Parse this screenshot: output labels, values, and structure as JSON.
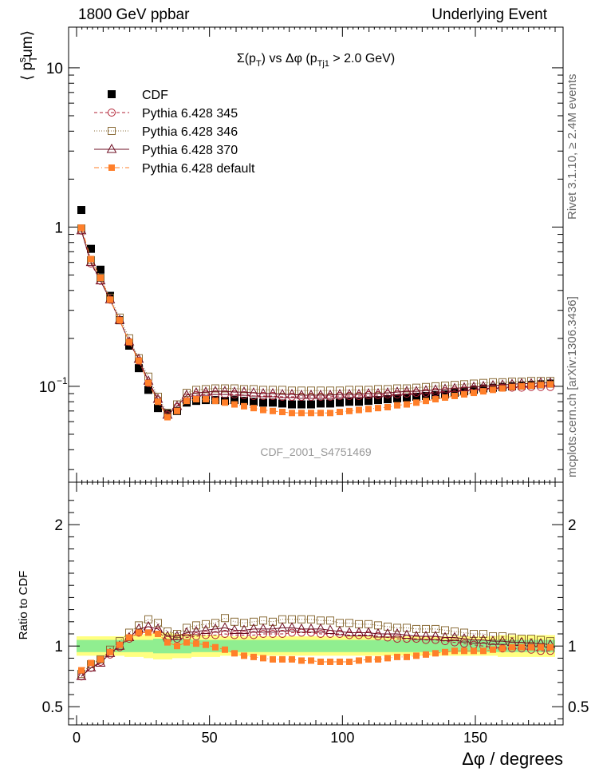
{
  "header": {
    "left": "1800 GeV ppbar",
    "right": "Underlying Event"
  },
  "side_labels": {
    "rivet": "Rivet 3.1.10, ≥ 2.4M events",
    "mcplots": "mcplots.cern.ch [arXiv:1306.3436]"
  },
  "colors": {
    "cdf": "#000000",
    "p345": "#b22234",
    "p346": "#8b6d3a",
    "p370": "#6e0f23",
    "pdefault": "#ff7f2a",
    "band_inner": "#90ee90",
    "band_outer": "#ffff80"
  },
  "chart_data": [
    {
      "type": "scatter",
      "title": "Σ(p_T) vs Δφ (p_Tj1 > 2.0 GeV)",
      "xlabel": "Δφ / degrees",
      "ylabel": "⟨ p_T^sum ⟩",
      "y_scale": "log",
      "xlim": [
        -3,
        183
      ],
      "ylim": [
        0.025,
        18
      ],
      "watermark": "CDF_2001_S4751469",
      "legend_position": "top-left",
      "x": [
        1.8,
        5.4,
        9.0,
        12.6,
        16.2,
        19.8,
        23.4,
        27.0,
        30.6,
        34.2,
        37.8,
        41.4,
        45.0,
        48.6,
        52.2,
        55.8,
        59.4,
        63.0,
        66.6,
        70.2,
        73.8,
        77.4,
        81.0,
        84.6,
        88.2,
        91.8,
        95.4,
        99.0,
        102.6,
        106.2,
        109.8,
        113.4,
        117.0,
        120.6,
        124.2,
        127.8,
        131.4,
        135.0,
        138.6,
        142.2,
        145.8,
        149.4,
        153.0,
        156.6,
        160.2,
        163.8,
        167.4,
        171.0,
        174.6,
        178.2
      ],
      "series": [
        {
          "name": "CDF",
          "marker": "filled-square",
          "color": "#000000",
          "values": [
            1.28,
            0.73,
            0.54,
            0.37,
            0.26,
            0.18,
            0.13,
            0.095,
            0.073,
            0.068,
            0.07,
            0.079,
            0.081,
            0.082,
            0.082,
            0.081,
            0.082,
            0.081,
            0.08,
            0.079,
            0.079,
            0.078,
            0.077,
            0.077,
            0.077,
            0.078,
            0.078,
            0.079,
            0.08,
            0.08,
            0.081,
            0.082,
            0.083,
            0.084,
            0.085,
            0.086,
            0.087,
            0.088,
            0.089,
            0.091,
            0.093,
            0.095,
            0.097,
            0.098,
            0.099,
            0.1,
            0.101,
            0.102,
            0.103,
            0.104
          ]
        },
        {
          "name": "Pythia 6.428 345",
          "marker": "open-circle",
          "line": "dashed",
          "color": "#b22234",
          "values": [
            0.95,
            0.59,
            0.46,
            0.35,
            0.26,
            0.19,
            0.145,
            0.105,
            0.082,
            0.066,
            0.074,
            0.085,
            0.088,
            0.089,
            0.089,
            0.089,
            0.089,
            0.088,
            0.087,
            0.087,
            0.087,
            0.086,
            0.086,
            0.086,
            0.086,
            0.086,
            0.086,
            0.087,
            0.087,
            0.087,
            0.088,
            0.088,
            0.089,
            0.089,
            0.09,
            0.091,
            0.091,
            0.092,
            0.093,
            0.094,
            0.095,
            0.096,
            0.097,
            0.097,
            0.098,
            0.098,
            0.098,
            0.099,
            0.099,
            0.099
          ]
        },
        {
          "name": "Pythia 6.428 346",
          "marker": "open-square",
          "line": "dotted",
          "color": "#8b6d3a",
          "values": [
            0.98,
            0.62,
            0.48,
            0.36,
            0.27,
            0.2,
            0.15,
            0.115,
            0.086,
            0.068,
            0.077,
            0.091,
            0.095,
            0.096,
            0.097,
            0.097,
            0.097,
            0.096,
            0.096,
            0.095,
            0.095,
            0.095,
            0.094,
            0.094,
            0.094,
            0.094,
            0.094,
            0.094,
            0.095,
            0.095,
            0.095,
            0.096,
            0.096,
            0.097,
            0.097,
            0.098,
            0.099,
            0.1,
            0.101,
            0.102,
            0.103,
            0.104,
            0.105,
            0.106,
            0.106,
            0.107,
            0.107,
            0.108,
            0.108,
            0.108
          ]
        },
        {
          "name": "Pythia 6.428 370",
          "marker": "open-triangle",
          "line": "solid",
          "color": "#6e0f23",
          "values": [
            0.95,
            0.6,
            0.46,
            0.35,
            0.26,
            0.19,
            0.148,
            0.108,
            0.083,
            0.066,
            0.075,
            0.088,
            0.091,
            0.092,
            0.093,
            0.093,
            0.092,
            0.092,
            0.091,
            0.09,
            0.09,
            0.089,
            0.089,
            0.088,
            0.088,
            0.088,
            0.088,
            0.089,
            0.089,
            0.089,
            0.09,
            0.09,
            0.091,
            0.092,
            0.093,
            0.093,
            0.094,
            0.095,
            0.096,
            0.097,
            0.098,
            0.099,
            0.1,
            0.101,
            0.102,
            0.103,
            0.104,
            0.104,
            0.105,
            0.105
          ]
        },
        {
          "name": "Pythia 6.428 default",
          "marker": "filled-square-small",
          "line": "dashdot",
          "color": "#ff7f2a",
          "values": [
            0.99,
            0.63,
            0.48,
            0.35,
            0.26,
            0.19,
            0.145,
            0.105,
            0.08,
            0.064,
            0.07,
            0.081,
            0.083,
            0.083,
            0.081,
            0.079,
            0.077,
            0.075,
            0.073,
            0.071,
            0.07,
            0.069,
            0.068,
            0.068,
            0.068,
            0.068,
            0.068,
            0.069,
            0.07,
            0.071,
            0.072,
            0.073,
            0.074,
            0.076,
            0.077,
            0.079,
            0.081,
            0.083,
            0.085,
            0.087,
            0.089,
            0.091,
            0.093,
            0.095,
            0.097,
            0.099,
            0.1,
            0.101,
            0.102,
            0.103
          ]
        }
      ]
    },
    {
      "type": "scatter",
      "ylabel": "Ratio to CDF",
      "xlabel": "Δφ / degrees",
      "xlim": [
        -3,
        183
      ],
      "ylim": [
        0.35,
        2.35
      ],
      "yticks": [
        0.5,
        1,
        2
      ],
      "xticks": [
        0,
        50,
        100,
        150
      ],
      "bands": {
        "inner_halfwidth": [
          0.05,
          0.05,
          0.05,
          0.05,
          0.05,
          0.05,
          0.05,
          0.05,
          0.06,
          0.06,
          0.06,
          0.06,
          0.05,
          0.05,
          0.05,
          0.05,
          0.05,
          0.05,
          0.05,
          0.05,
          0.05,
          0.05,
          0.05,
          0.05,
          0.05,
          0.05,
          0.05,
          0.05,
          0.05,
          0.05,
          0.05,
          0.05,
          0.05,
          0.05,
          0.05,
          0.05,
          0.05,
          0.05,
          0.05,
          0.05,
          0.05,
          0.05,
          0.05,
          0.05,
          0.05,
          0.05,
          0.05,
          0.05,
          0.05,
          0.05
        ],
        "outer_halfwidth": [
          0.08,
          0.08,
          0.08,
          0.08,
          0.08,
          0.09,
          0.09,
          0.1,
          0.11,
          0.11,
          0.1,
          0.1,
          0.09,
          0.09,
          0.09,
          0.08,
          0.08,
          0.08,
          0.08,
          0.08,
          0.08,
          0.08,
          0.08,
          0.08,
          0.08,
          0.08,
          0.08,
          0.08,
          0.08,
          0.08,
          0.08,
          0.08,
          0.08,
          0.08,
          0.08,
          0.08,
          0.08,
          0.08,
          0.08,
          0.08,
          0.08,
          0.08,
          0.08,
          0.08,
          0.09,
          0.09,
          0.09,
          0.09,
          0.09,
          0.09
        ]
      },
      "series": [
        {
          "name": "Pythia 6.428 345",
          "values": [
            0.75,
            0.82,
            0.87,
            0.93,
            0.99,
            1.06,
            1.11,
            1.13,
            1.12,
            1.05,
            1.06,
            1.07,
            1.08,
            1.09,
            1.09,
            1.1,
            1.09,
            1.09,
            1.09,
            1.1,
            1.1,
            1.1,
            1.11,
            1.11,
            1.11,
            1.1,
            1.1,
            1.1,
            1.09,
            1.09,
            1.09,
            1.08,
            1.07,
            1.06,
            1.06,
            1.06,
            1.05,
            1.05,
            1.04,
            1.03,
            1.02,
            1.01,
            1.0,
            0.99,
            0.98,
            0.98,
            0.98,
            0.97,
            0.96,
            0.96
          ]
        },
        {
          "name": "Pythia 6.428 346",
          "values": [
            0.77,
            0.85,
            0.89,
            0.97,
            1.04,
            1.11,
            1.17,
            1.22,
            1.19,
            1.12,
            1.1,
            1.15,
            1.17,
            1.18,
            1.19,
            1.23,
            1.2,
            1.19,
            1.2,
            1.21,
            1.2,
            1.22,
            1.22,
            1.22,
            1.22,
            1.21,
            1.21,
            1.19,
            1.19,
            1.18,
            1.18,
            1.17,
            1.16,
            1.15,
            1.15,
            1.14,
            1.14,
            1.14,
            1.13,
            1.12,
            1.11,
            1.1,
            1.1,
            1.08,
            1.08,
            1.07,
            1.06,
            1.06,
            1.05,
            1.04
          ]
        },
        {
          "name": "Pythia 6.428 370",
          "values": [
            0.75,
            0.82,
            0.86,
            0.94,
            1.0,
            1.07,
            1.14,
            1.16,
            1.14,
            1.08,
            1.08,
            1.11,
            1.12,
            1.13,
            1.14,
            1.15,
            1.13,
            1.13,
            1.14,
            1.14,
            1.14,
            1.15,
            1.15,
            1.14,
            1.14,
            1.14,
            1.13,
            1.12,
            1.11,
            1.11,
            1.11,
            1.1,
            1.1,
            1.1,
            1.09,
            1.08,
            1.08,
            1.08,
            1.07,
            1.07,
            1.06,
            1.05,
            1.05,
            1.04,
            1.04,
            1.03,
            1.03,
            1.02,
            1.02,
            1.01
          ]
        },
        {
          "name": "Pythia 6.428 default",
          "values": [
            0.8,
            0.86,
            0.89,
            0.95,
            1.01,
            1.07,
            1.11,
            1.11,
            1.1,
            1.03,
            1.0,
            1.03,
            1.02,
            1.01,
            0.99,
            0.97,
            0.94,
            0.92,
            0.91,
            0.9,
            0.89,
            0.89,
            0.89,
            0.88,
            0.88,
            0.87,
            0.87,
            0.87,
            0.87,
            0.88,
            0.89,
            0.89,
            0.9,
            0.91,
            0.91,
            0.92,
            0.93,
            0.94,
            0.95,
            0.96,
            0.96,
            0.96,
            0.96,
            0.97,
            0.98,
            0.99,
            0.99,
            0.99,
            0.99,
            0.99
          ]
        }
      ]
    }
  ]
}
